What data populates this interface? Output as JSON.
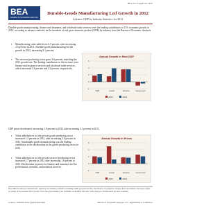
{
  "header": {
    "dateline": "BEA 13-17 April 25, 2013",
    "logo": "BEA",
    "logo_subtitle": "BUREAU OF ECONOMIC ANALYSIS",
    "title": "Durable-Goods Manufacturing Led Growth in 2012",
    "subtitle": "Advance GDP by Industry Statistics for 2012"
  },
  "intro": "Durable-goods manufacturing, finance and insurance, and wholesale trade services were the leading contributors to U.S. economic growth in 2012, according to advance statistics on the breakout of real gross domestic product (GDP) by industry from the Bureau of Economic Analysis.",
  "bullets_growth": [
    "Manufacturing value added rose 6.3 percent, after increasing 2.5 percent in 2011. Durable-goods manufacturing led the growth in 2012, increasing 9.1 percent.",
    "The services-producing sector grew 3.6 percent, matching the 2011 growth rate. The leading contributors to the increase were finance and insurance services and wholesale trade services, which increased 3.6 percent and 4.4 percent, respectively."
  ],
  "prices_intro": "GDP prices decelerated, increasing 1.8 percent in 2012 after increasing 2.1 percent in 2011.",
  "bullets_prices": [
    "Value added prices for the private goods-producing sector increased 1.2 percent in 2012, after increasing 5.0 percent in 2011. Nondurable-goods manufacturing was the leading contributor to the deceleration in the goods-producing sector in 2012.",
    "Value added prices for the private services-producing sector increased 1.7 percent in 2012 after increasing 1.8 percent in 2011. Deceleration in prices for finance and insurance and for professional, scientific, and technical services."
  ],
  "charts": [
    {
      "type": "bar",
      "title": "Annual Growth in Real GDP",
      "categories": [
        "GDP",
        "Goods",
        "Services",
        "Government"
      ],
      "series": [
        {
          "name": "2011",
          "color": "#9b2d2d",
          "values": [
            1.8,
            1.6,
            3.6,
            -1.1
          ]
        },
        {
          "name": "2012",
          "color": "#1f4e79",
          "values": [
            2.2,
            3.9,
            3.6,
            -0.5
          ]
        }
      ],
      "ylim": [
        -2,
        6
      ],
      "yticks": [
        -2,
        0,
        2,
        4,
        6
      ]
    },
    {
      "type": "bar",
      "title": "Annual Growth in Prices",
      "categories": [
        "GDP",
        "Goods",
        "Services",
        "Government"
      ],
      "series": [
        {
          "name": "2011",
          "color": "#9b2d2d",
          "values": [
            2.1,
            5.0,
            1.8,
            2.6
          ]
        },
        {
          "name": "2012",
          "color": "#1f4e79",
          "values": [
            1.8,
            1.2,
            1.7,
            2.1
          ]
        }
      ],
      "ylim": [
        -2,
        6
      ],
      "yticks": [
        -2,
        0,
        2,
        4,
        6
      ]
    }
  ],
  "footer": {
    "note": "Note: BEA's national, international, regional, and industry statistics, including GDP, personal income, the balance of payments, foreign direct investment, the input-output accounts, and economic data by state, local area, and industry, are available on the BEA Web site: www.bea.gov. E-mail alerts are also available.",
    "contact": "Contact: Jeannine Aversa (202) 606-2649",
    "agency": "Bureau of Economic Analysis, U.S. Department of Commerce"
  }
}
